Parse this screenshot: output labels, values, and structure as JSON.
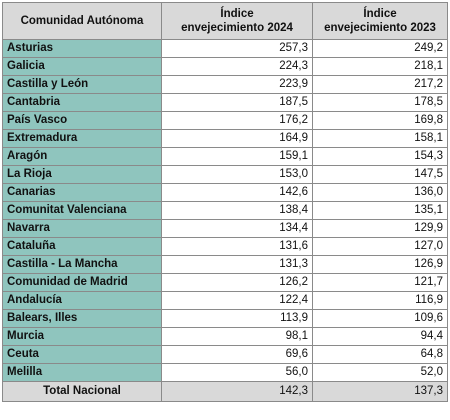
{
  "table": {
    "headers": {
      "name": "Comunidad Autónoma",
      "year_2024": [
        "Índice",
        "envejecimiento 2024"
      ],
      "year_2023": [
        "Índice",
        "envejecimiento 2023"
      ]
    },
    "rows": [
      {
        "name": "Asturias",
        "v2024": "257,3",
        "v2023": "249,2"
      },
      {
        "name": "Galicia",
        "v2024": "224,3",
        "v2023": "218,1"
      },
      {
        "name": "Castilla y León",
        "v2024": "223,9",
        "v2023": "217,2"
      },
      {
        "name": "Cantabria",
        "v2024": "187,5",
        "v2023": "178,5"
      },
      {
        "name": "País Vasco",
        "v2024": "176,2",
        "v2023": "169,8"
      },
      {
        "name": "Extremadura",
        "v2024": "164,9",
        "v2023": "158,1"
      },
      {
        "name": "Aragón",
        "v2024": "159,1",
        "v2023": "154,3"
      },
      {
        "name": "La Rioja",
        "v2024": "153,0",
        "v2023": "147,5"
      },
      {
        "name": "Canarias",
        "v2024": "142,6",
        "v2023": "136,0"
      },
      {
        "name": "Comunitat Valenciana",
        "v2024": "138,4",
        "v2023": "135,1"
      },
      {
        "name": "Navarra",
        "v2024": "134,4",
        "v2023": "129,9"
      },
      {
        "name": "Cataluña",
        "v2024": "131,6",
        "v2023": "127,0"
      },
      {
        "name": "Castilla - La Mancha",
        "v2024": "131,3",
        "v2023": "126,9"
      },
      {
        "name": "Comunidad de Madrid",
        "v2024": "126,2",
        "v2023": "121,7"
      },
      {
        "name": "Andalucía",
        "v2024": "122,4",
        "v2023": "116,9"
      },
      {
        "name": "Balears, Illes",
        "v2024": "113,9",
        "v2023": "109,6"
      },
      {
        "name": "Murcia",
        "v2024": "98,1",
        "v2023": "94,4"
      },
      {
        "name": "Ceuta",
        "v2024": "69,6",
        "v2023": "64,8"
      },
      {
        "name": "Melilla",
        "v2024": "56,0",
        "v2023": "52,0"
      }
    ],
    "total": {
      "name": "Total Nacional",
      "v2024": "142,3",
      "v2023": "137,3"
    }
  },
  "colors": {
    "region_cell": "#8fc5be",
    "header_bg": "#d9d9d9",
    "border": "#8a8a8a"
  }
}
